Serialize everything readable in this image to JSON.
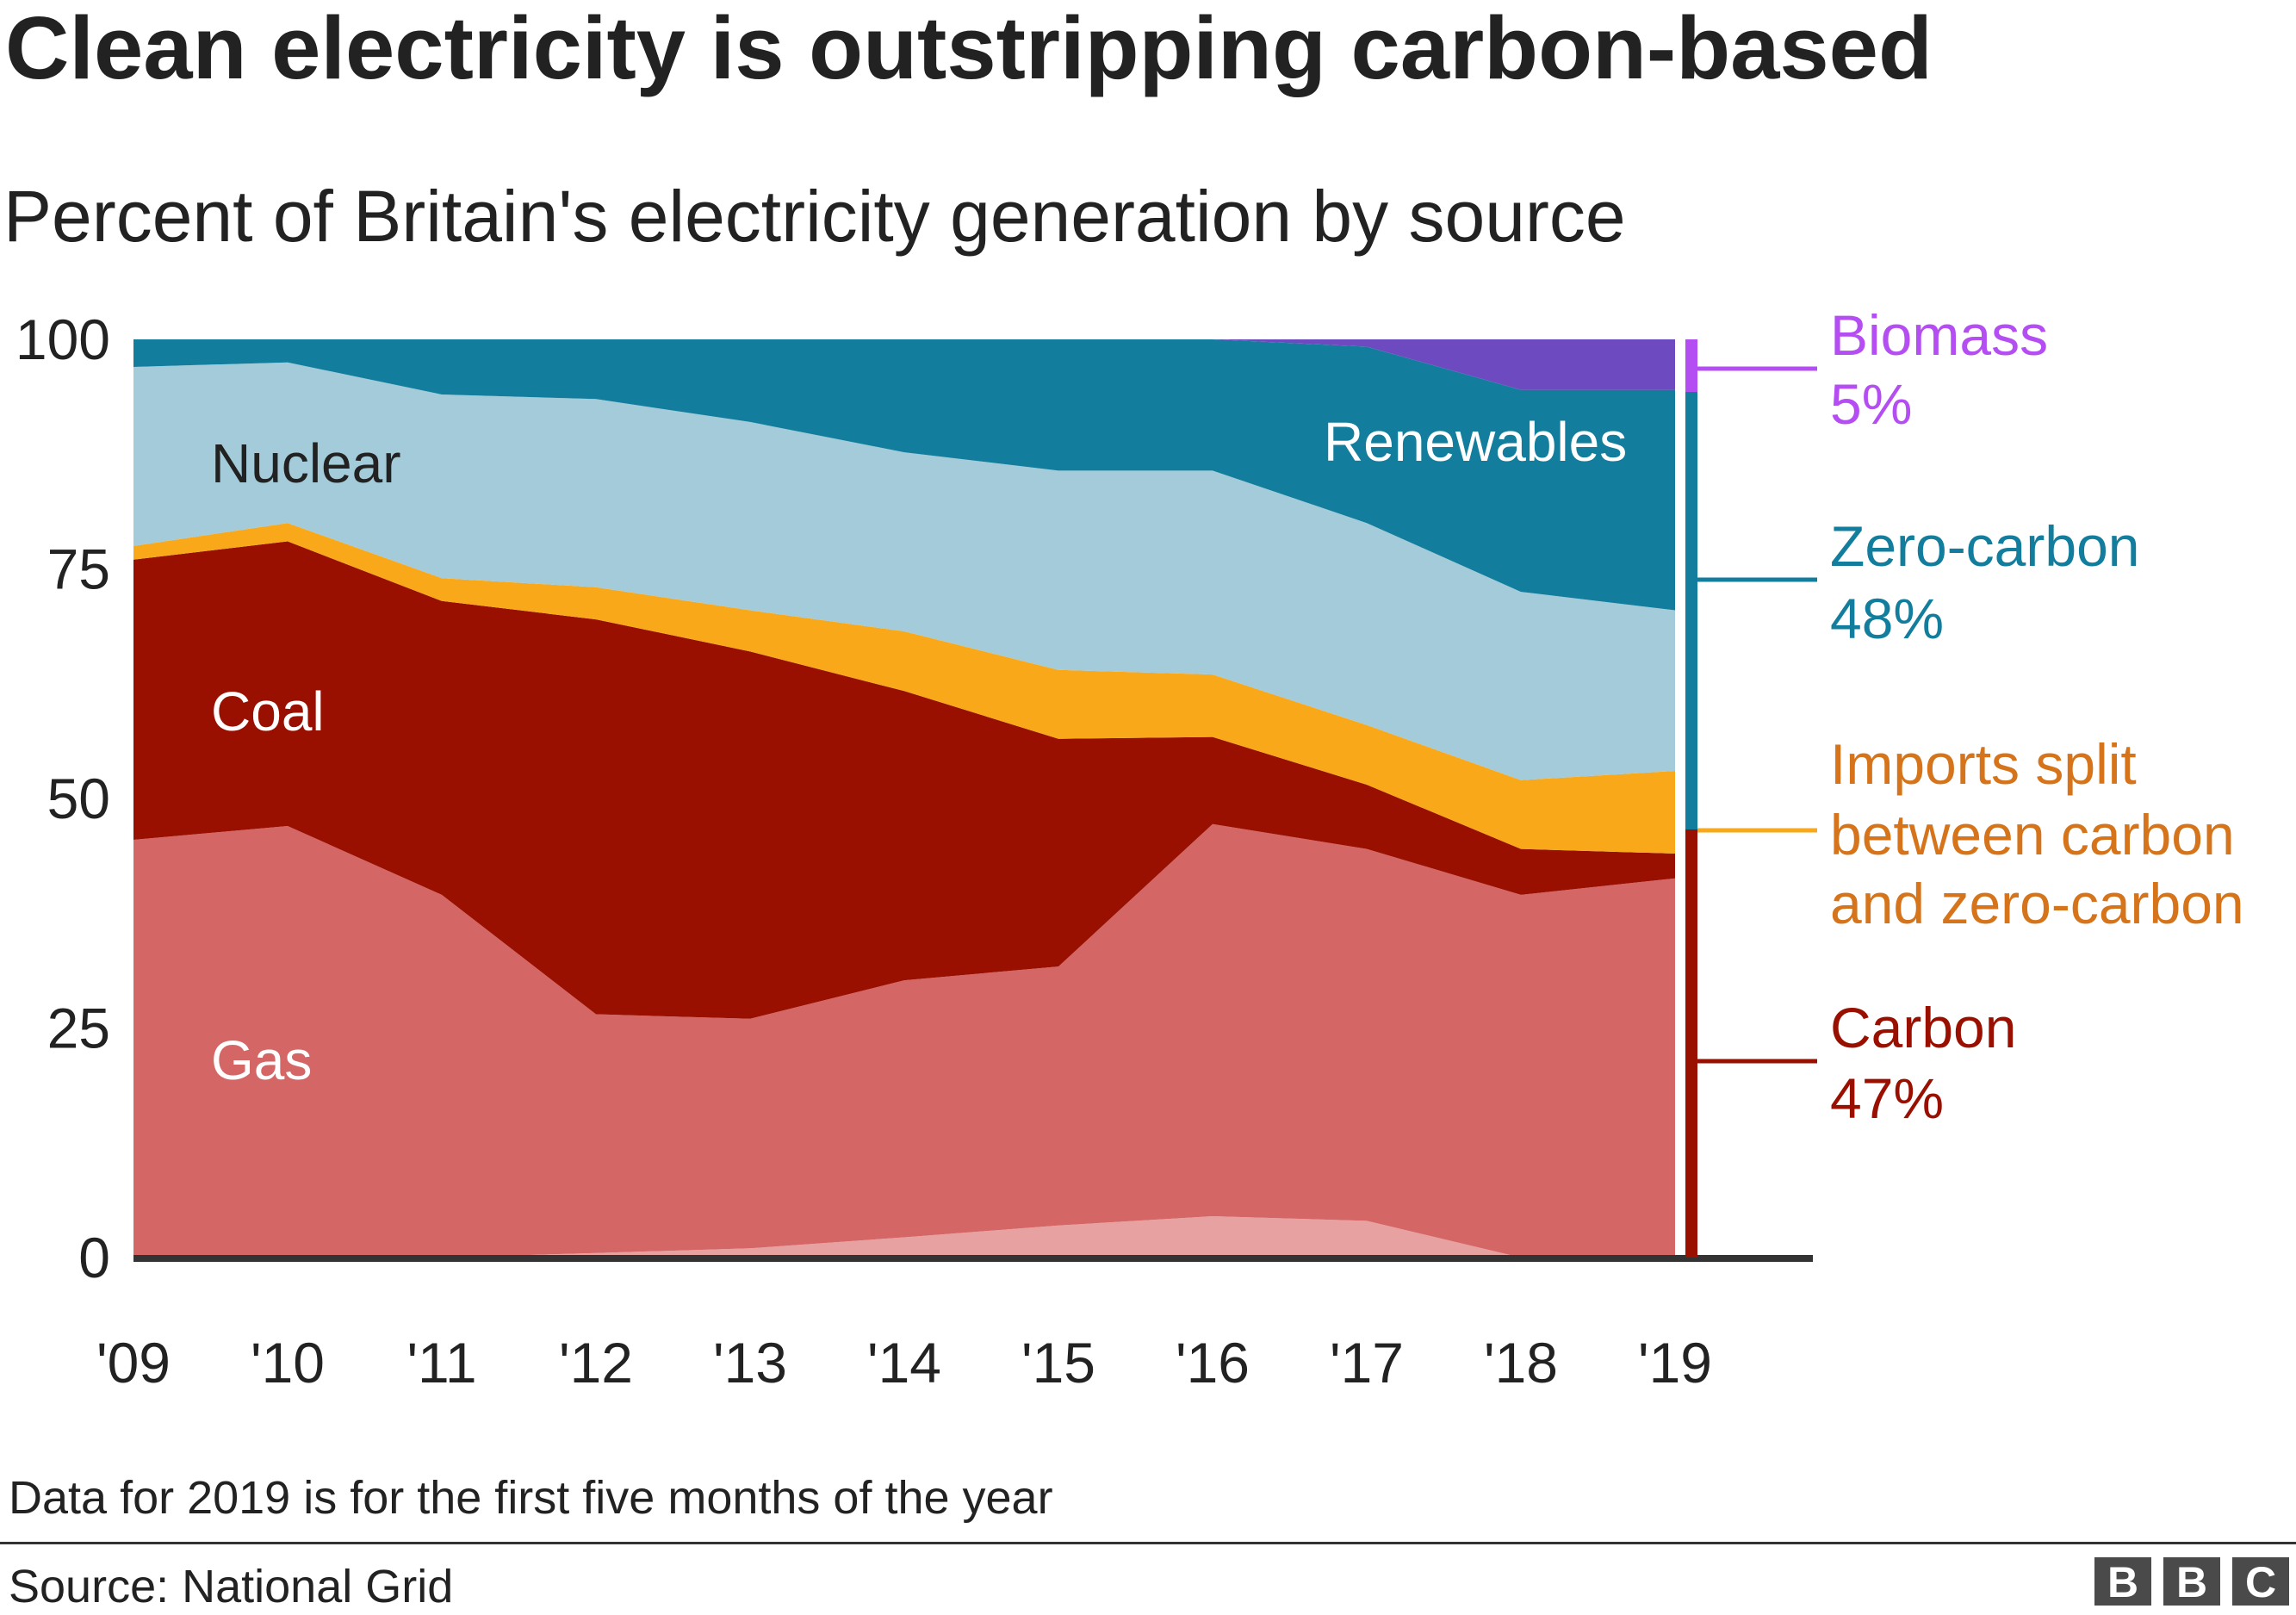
{
  "chart_data": {
    "type": "area",
    "stacked": true,
    "title": "Clean electricity is outstripping carbon-based",
    "subtitle": "Percent of Britain's electricity generation by source",
    "categories": [
      "'09",
      "'10",
      "'11",
      "'12",
      "'13",
      "'14",
      "'15",
      "'16",
      "'17",
      "'18",
      "'19"
    ],
    "ylim": [
      0,
      100
    ],
    "yticks": [
      "0",
      "25",
      "50",
      "75",
      "100"
    ],
    "series": [
      {
        "key": "other_carbon",
        "color": "#e8a1a1",
        "values": [
          0,
          0,
          0,
          0.5,
          1,
          2.2,
          3.5,
          4.5,
          4,
          0,
          0
        ]
      },
      {
        "name": "Gas",
        "color": "#d46666",
        "values": [
          45.5,
          47,
          39.5,
          26,
          25,
          28,
          28.2,
          42.7,
          40.5,
          39.5,
          41.3
        ]
      },
      {
        "name": "Coal",
        "color": "#990f00",
        "values": [
          30.5,
          31,
          32,
          43,
          40,
          31.5,
          24.8,
          9.5,
          7,
          5,
          2.7
        ]
      },
      {
        "key": "imports",
        "color": "#f9a81a",
        "values": [
          1.5,
          2,
          2.5,
          3.5,
          4.5,
          6.5,
          7.5,
          6.8,
          6.5,
          7.5,
          9
        ]
      },
      {
        "name": "Nuclear",
        "color": "#a3cbda",
        "values": [
          19.5,
          17.5,
          20,
          20.5,
          20.5,
          19.5,
          21.7,
          22.2,
          22,
          20.5,
          17.5
        ]
      },
      {
        "name": "Renewables",
        "color": "#127d9c",
        "values": [
          3,
          2.5,
          6,
          6.5,
          9,
          12.3,
          14.3,
          14.3,
          19.2,
          22,
          24
        ]
      },
      {
        "key": "biomass",
        "color": "#6e4ac1",
        "values": [
          0,
          0,
          0,
          0,
          0,
          0,
          0,
          0,
          0.8,
          5.5,
          5.5
        ]
      }
    ],
    "summary_bars": [
      {
        "name": "Biomass",
        "value": "5%",
        "color": "#b44ef2",
        "bar_color": "#b44ef2",
        "range": [
          94.5,
          100
        ]
      },
      {
        "name": "Zero-carbon",
        "value": "48%",
        "color": "#127d9c",
        "bar_color": "#127d9c",
        "range": [
          47,
          94.5
        ]
      },
      {
        "name": "Imports split between carbon and zero-carbon",
        "lines": [
          "Imports split",
          "between carbon",
          "and zero-carbon"
        ],
        "color": "#d5741a",
        "bar_color": "#f9a81a",
        "at": 47
      },
      {
        "name": "Carbon",
        "value": "47%",
        "color": "#990f00",
        "bar_color": "#990f00",
        "range": [
          0,
          47
        ]
      }
    ],
    "note": "Data for 2019 is for the first five months of the year",
    "source": "Source: National Grid",
    "logo": "BBC"
  }
}
